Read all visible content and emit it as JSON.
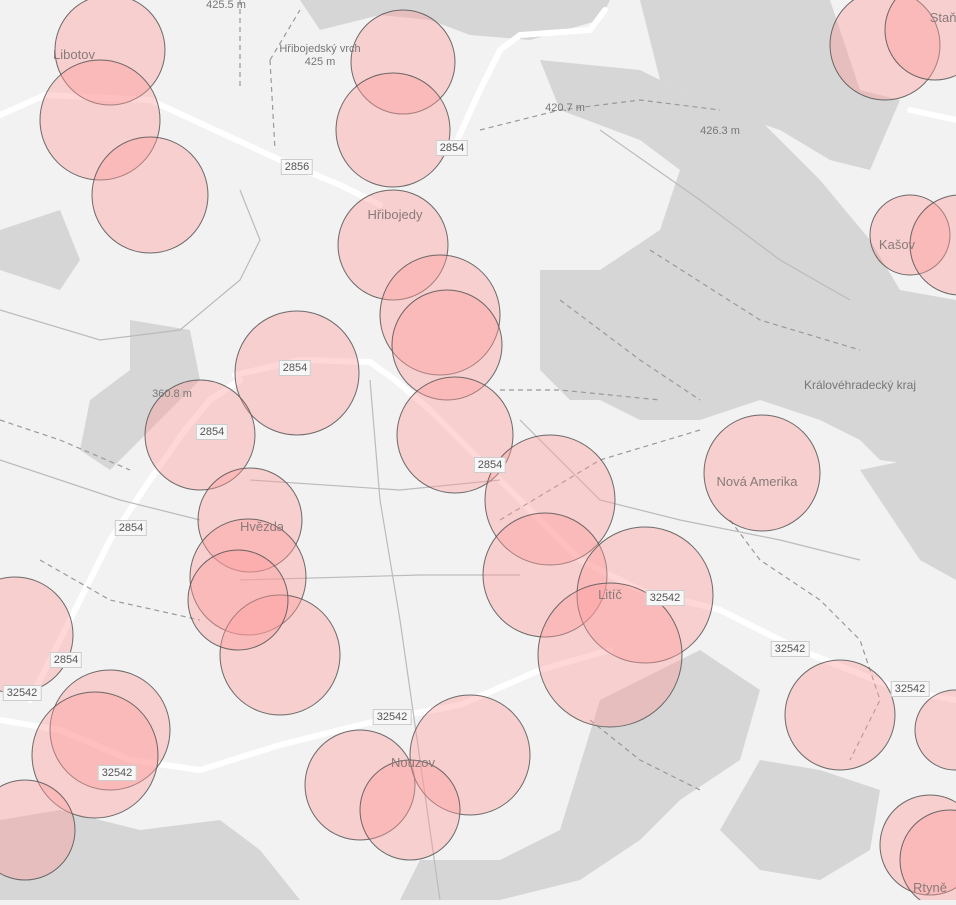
{
  "map": {
    "labels": {
      "elev_1": "425.5 m",
      "libotov": "Libotov",
      "hribojedsky_vrch": "Hřibojedský vrch",
      "elev_2": "425 m",
      "elev_3": "420.7 m",
      "elev_4": "426.3 m",
      "stanov": "Staňov",
      "hribojedy": "Hřibojedy",
      "kasov": "Kašov",
      "kraj": "Královéhradecký kraj",
      "elev_5": "360.8 m",
      "hvezda": "Hvězda",
      "nova_amerika": "Nová Amerika",
      "litic": "Litíč",
      "nouzov": "Nouzov",
      "rtyne": "Rtyně"
    },
    "road_numbers": {
      "r1": "2856",
      "r2": "2854",
      "r3": "2854",
      "r4": "2854",
      "r5": "2854",
      "r6": "2854",
      "r7": "2854",
      "r8": "32542",
      "r9": "32542",
      "r10": "32542",
      "r11": "32542",
      "r12": "32542",
      "r13": "32542"
    },
    "colors": {
      "background": "#f2f2f2",
      "forest": "#d6d6d6",
      "road": "#ffffff",
      "buffer_fill": "#ff9a9a",
      "buffer_stroke": "#555555"
    }
  }
}
